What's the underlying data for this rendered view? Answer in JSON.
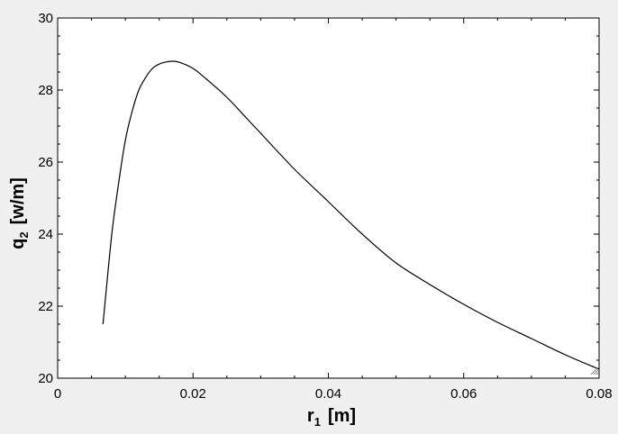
{
  "colors": {
    "window_background": "#f0f0f0",
    "plot_background": "#ffffff",
    "axis": "#000000",
    "curve": "#000000"
  },
  "chart_data": {
    "type": "line",
    "title": "",
    "xlabel_main": "r",
    "xlabel_sub": "1",
    "xlabel_unit": "[m]",
    "ylabel_main": "q",
    "ylabel_sub": "2",
    "ylabel_unit": "[w/m]",
    "xlim": [
      0,
      0.08
    ],
    "ylim": [
      20,
      30
    ],
    "x_ticks": [
      0,
      0.02,
      0.04,
      0.06,
      0.08
    ],
    "x_tick_labels": [
      "0",
      "0.02",
      "0.04",
      "0.06",
      "0.08"
    ],
    "y_ticks": [
      20,
      22,
      24,
      26,
      28,
      30
    ],
    "y_tick_labels": [
      "20",
      "22",
      "24",
      "26",
      "28",
      "30"
    ],
    "grid": false,
    "legend": "none",
    "series": [
      {
        "x": [
          0.0067,
          0.008,
          0.009,
          0.01,
          0.011,
          0.012,
          0.013,
          0.014,
          0.015,
          0.016,
          0.017,
          0.018,
          0.02,
          0.022,
          0.025,
          0.028,
          0.03,
          0.035,
          0.04,
          0.045,
          0.05,
          0.055,
          0.06,
          0.065,
          0.07,
          0.075,
          0.08
        ],
        "y": [
          21.5,
          24.0,
          25.4,
          26.6,
          27.4,
          28.0,
          28.35,
          28.6,
          28.72,
          28.78,
          28.8,
          28.77,
          28.6,
          28.3,
          27.8,
          27.2,
          26.8,
          25.8,
          24.9,
          24.0,
          23.2,
          22.6,
          22.05,
          21.55,
          21.1,
          20.65,
          20.25
        ]
      }
    ]
  }
}
